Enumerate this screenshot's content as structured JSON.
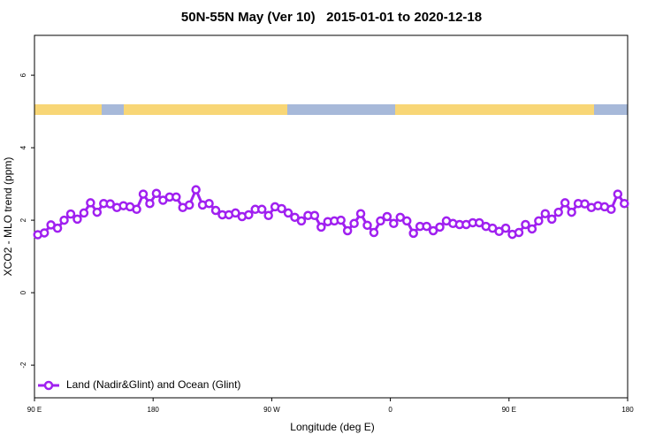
{
  "chart_data": {
    "type": "line",
    "title": "50N-55N May (Ver 10)   2015-01-01 to 2020-12-18",
    "xlabel": "Longitude (deg E)",
    "ylabel": "XCO2 - MLO trend (ppm)",
    "xlim": [
      90,
      540
    ],
    "ylim": [
      -2.9,
      7.1
    ],
    "xticks": [
      {
        "value": 90,
        "label": "90 E"
      },
      180,
      {
        "value": 270,
        "label": "90 W"
      },
      {
        "value": 360,
        "label": "0"
      },
      {
        "value": 450,
        "label": "90 E"
      },
      {
        "value": 540,
        "label": "180"
      }
    ],
    "yticks": [
      -2,
      0,
      2,
      4,
      6
    ],
    "legend": "bottom-left",
    "x": [
      92.5,
      97.5,
      102.5,
      107.5,
      112.5,
      117.5,
      122.5,
      127.5,
      132.5,
      137.5,
      142.5,
      147.5,
      152.5,
      157.5,
      162.5,
      167.5,
      172.5,
      177.5,
      182.5,
      187.5,
      192.5,
      197.5,
      202.5,
      207.5,
      212.5,
      217.5,
      222.5,
      227.5,
      232.5,
      237.5,
      242.5,
      247.5,
      252.5,
      257.5,
      262.5,
      267.5,
      272.5,
      277.5,
      282.5,
      287.5,
      292.5,
      297.5,
      302.5,
      307.5,
      312.5,
      317.5,
      322.5,
      327.5,
      332.5,
      337.5,
      342.5,
      347.5,
      352.5,
      357.5,
      362.5,
      367.5,
      372.5,
      377.5,
      382.5,
      387.5,
      392.5,
      397.5,
      402.5,
      407.5,
      412.5,
      417.5,
      422.5,
      427.5,
      432.5,
      437.5,
      442.5,
      447.5,
      452.5,
      457.5,
      462.5,
      467.5,
      472.5,
      477.5,
      482.5,
      487.5,
      492.5,
      497.5,
      502.5,
      507.5,
      512.5,
      517.5,
      522.5,
      527.5,
      532.5,
      537.5
    ],
    "series": [
      {
        "name": "Land (Nadir&Glint) and Ocean (Glint)",
        "color": "#a020f0",
        "values": [
          1.6,
          1.65,
          1.87,
          1.78,
          2.0,
          2.17,
          2.03,
          2.2,
          2.48,
          2.22,
          2.46,
          2.45,
          2.35,
          2.4,
          2.37,
          2.3,
          2.72,
          2.46,
          2.74,
          2.55,
          2.64,
          2.64,
          2.35,
          2.42,
          2.84,
          2.42,
          2.46,
          2.27,
          2.15,
          2.15,
          2.2,
          2.1,
          2.15,
          2.3,
          2.3,
          2.13,
          2.37,
          2.32,
          2.2,
          2.08,
          1.98,
          2.13,
          2.13,
          1.81,
          1.96,
          1.98,
          2.0,
          1.71,
          1.91,
          2.18,
          1.86,
          1.66,
          1.98,
          2.1,
          1.91,
          2.08,
          1.98,
          1.64,
          1.83,
          1.83,
          1.71,
          1.81,
          1.98,
          1.91,
          1.88,
          1.88,
          1.93,
          1.93,
          1.83,
          1.78,
          1.69,
          1.78,
          1.61,
          1.66,
          1.88,
          1.76,
          1.98,
          2.18,
          2.03,
          2.22,
          2.48,
          2.22,
          2.46,
          2.45,
          2.35,
          2.4,
          2.37,
          2.3,
          2.72,
          2.46
        ]
      }
    ]
  }
}
